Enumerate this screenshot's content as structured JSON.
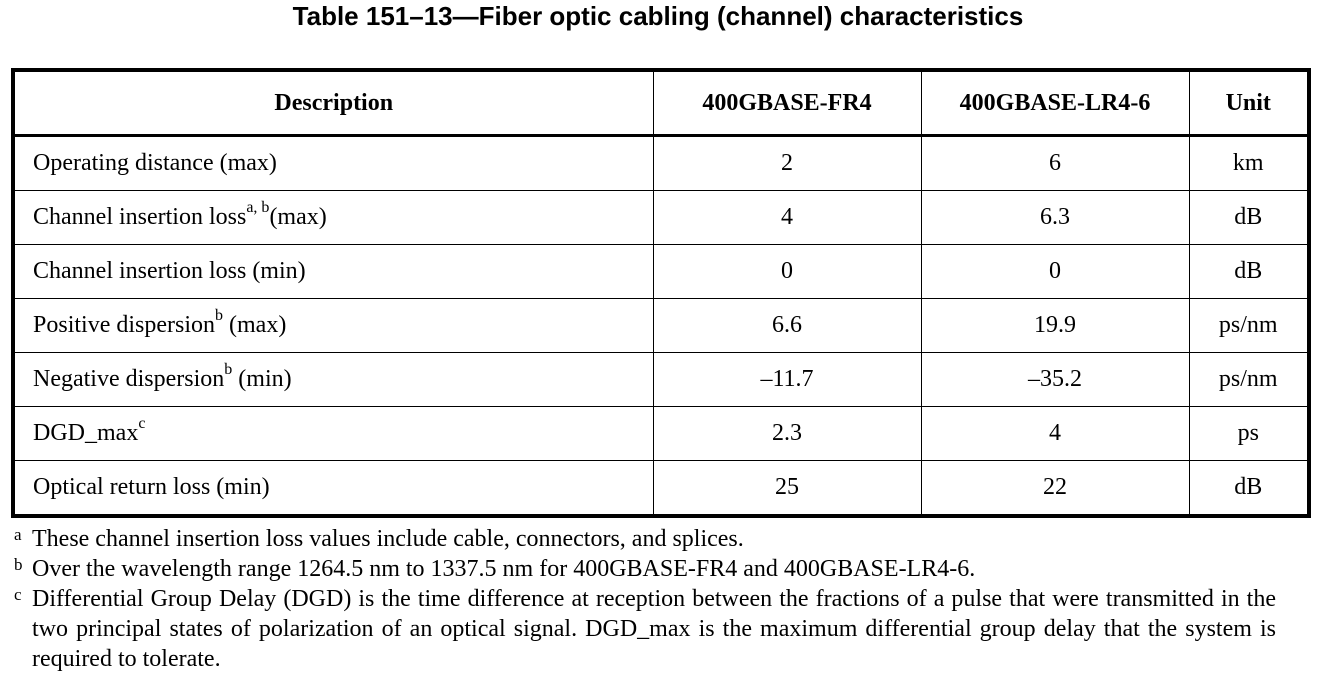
{
  "title": "Table 151–13—Fiber optic cabling (channel) characteristics",
  "table": {
    "headers": [
      "Description",
      "400GBASE-FR4",
      "400GBASE-LR4-6",
      "Unit"
    ],
    "rows": [
      {
        "desc": "Operating distance (max)",
        "desc_main": "Operating distance (max)",
        "desc_sup": "",
        "desc_tail": "",
        "fr4": "2",
        "lr4": "6",
        "unit": "km"
      },
      {
        "desc_main": "Channel insertion loss",
        "desc_sup": "a, b",
        "desc_tail": "(max)",
        "fr4": "4",
        "lr4": "6.3",
        "unit": "dB"
      },
      {
        "desc_main": "Channel insertion loss (min)",
        "desc_sup": "",
        "desc_tail": "",
        "fr4": "0",
        "lr4": "0",
        "unit": "dB"
      },
      {
        "desc_main": "Positive dispersion",
        "desc_sup": "b",
        "desc_tail": " (max)",
        "fr4": "6.6",
        "lr4": "19.9",
        "unit": "ps/nm"
      },
      {
        "desc_main": "Negative dispersion",
        "desc_sup": "b",
        "desc_tail": " (min)",
        "fr4": "–11.7",
        "lr4": "–35.2",
        "unit": "ps/nm"
      },
      {
        "desc_main": "DGD_max",
        "desc_sup": "c",
        "desc_tail": "",
        "fr4": "2.3",
        "lr4": "4",
        "unit": "ps"
      },
      {
        "desc_main": "Optical return loss (min)",
        "desc_sup": "",
        "desc_tail": "",
        "fr4": "25",
        "lr4": "22",
        "unit": "dB"
      }
    ]
  },
  "footnotes": [
    {
      "mark": "a",
      "text": "These channel insertion loss values include cable, connectors, and splices."
    },
    {
      "mark": "b",
      "text": "Over the wavelength range 1264.5 nm to 1337.5 nm for 400GBASE-FR4 and 400GBASE-LR4-6."
    },
    {
      "mark": "c",
      "text": "Differential Group Delay (DGD) is the time difference at reception between the fractions of a pulse that were transmitted in the two principal states of polarization of an optical signal. DGD_max is the maximum differential group delay that the system is required to tolerate."
    }
  ]
}
